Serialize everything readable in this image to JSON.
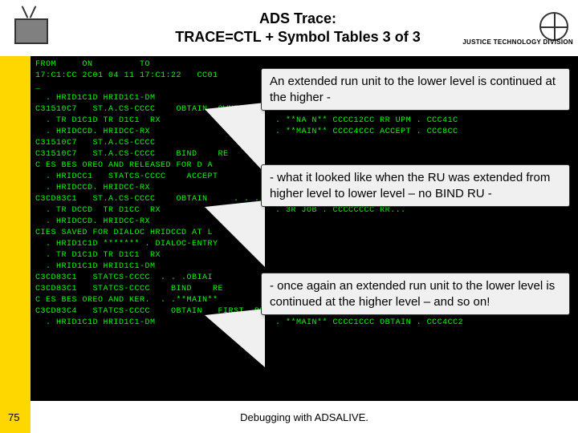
{
  "header": {
    "title_line1": "ADS Trace:",
    "title_line2": "TRACE=CTL + Symbol Tables 3 of 3",
    "justice_label": "JUSTICE TECHNOLOGY DIVISION"
  },
  "terminal": {
    "font_color": "#00ff00",
    "background": "#000000",
    "lines": [
      "FROM     ON         TO",
      "17:C1:CC 2C01 04 11 17:C1:22   CC01",
      "_",
      "  . HRID1C1D HRID1C1-DM",
      "C31510C7   ST.A.CS-CCCC    OBTAIN  OWNER   RE . . . . . . SE-->CUB-EMPLOYEE",
      "  . TR D1C1D TR D1C1  RX                      . **NA N** CCCC12CC RR UPM . CCC41C",
      "  . HRIDCCD. HRIDCC-RX                        . **MAIN** CCCC4CCC ACCEPT . CCC8CC",
      "C31510C7   ST.A.CS-CCCC",
      "C31510C7   ST.A.CS-CCCC    BIND    RE",
      "C ES BES OREO AND RELEASED FOR D A",
      "  . HRIDCC1   STATCS-CCCC    ACCEPT",
      "  . HRIDCCD. HRIDCC-RX",
      "C3CD83C1   ST.A.CS-CCCC    OBTAIN     . . . . . . . REC-->EXPLOTEE    SET",
      "  . TR DCCD  TR D1CC  RX                      . 3R JOB . CCCCCCCC RR...",
      "  . HRIDCCD. HRIDCC-RX",
      "CIES SAVED FOR DIALOC HRIDCCD AT L",
      "  . HRID1C1D ******* . DIALOC-ENTRY",
      "  . TR D1C1D TR D1C1  RX",
      "  . HRID1C1D HRID1C1-DM",
      "C3CD83C1   STATCS-CCCC  . . .OBIAI",
      "C3CD83C1   STATCS-CCCC    BIND    RE",
      "C ES BES OREO AND KER.  . .**MAIN**",
      "C3CD83C4   STATCS-CCCC    OBTAIN   FIRST  RECORD IN SET.    REC-->EXPOSOTT ON    SET-",
      "  . HRID1C1D HRID1C1-DM                       . **MAIN** CCCC1CCC OBTAIN . CCC4CC2"
    ]
  },
  "callouts": [
    {
      "text": "An extended run unit to the lower level is continued at the higher -"
    },
    {
      "text": "- what it looked like when the RU was extended from higher level to lower level – no BIND RU -"
    },
    {
      "text": "- once again an  extended run unit to the lower level is continued at the higher level – and so on!"
    }
  ],
  "footer": {
    "page_number": "75",
    "caption": "Debugging with ADSALIVE."
  },
  "colors": {
    "yellow_strip": "#ffd700",
    "callout_bg": "#f0f0f0",
    "header_bg": "#ffffff",
    "footer_bg": "#ffffff"
  }
}
